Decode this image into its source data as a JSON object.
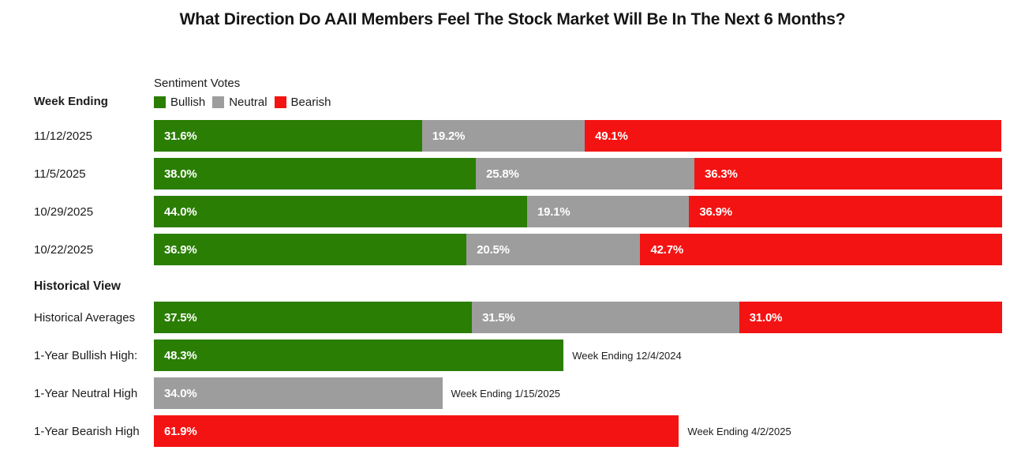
{
  "title": "What Direction Do AAII Members Feel The Stock Market Will Be In The Next 6 Months?",
  "left_header": "Week Ending",
  "section_header": "Historical View",
  "legend": {
    "title": "Sentiment Votes",
    "items": [
      {
        "label": "Bullish",
        "series": "bullish"
      },
      {
        "label": "Neutral",
        "series": "neutral"
      },
      {
        "label": "Bearish",
        "series": "bearish"
      }
    ]
  },
  "colors": {
    "bullish": "#2a7e04",
    "neutral": "#9d9d9d",
    "bearish": "#f41313"
  },
  "chart_data": {
    "type": "bar",
    "orientation": "horizontal-stacked",
    "axis_max": 100,
    "value_suffix": "%",
    "weekly_rows": [
      {
        "label": "11/12/2025",
        "bullish": 31.6,
        "neutral": 19.2,
        "bearish": 49.1
      },
      {
        "label": "11/5/2025",
        "bullish": 38.0,
        "neutral": 25.8,
        "bearish": 36.3
      },
      {
        "label": "10/29/2025",
        "bullish": 44.0,
        "neutral": 19.1,
        "bearish": 36.9
      },
      {
        "label": "10/22/2025",
        "bullish": 36.9,
        "neutral": 20.5,
        "bearish": 42.7
      }
    ],
    "historical_rows": [
      {
        "label": "Historical Averages",
        "bullish": 37.5,
        "neutral": 31.5,
        "bearish": 31.0
      }
    ],
    "single_rows": [
      {
        "label": "1-Year Bullish High:",
        "series": "bullish",
        "value": 48.3,
        "annotation": "Week Ending 12/4/2024"
      },
      {
        "label": "1-Year Neutral High",
        "series": "neutral",
        "value": 34.0,
        "annotation": "Week Ending 1/15/2025"
      },
      {
        "label": "1-Year Bearish High",
        "series": "bearish",
        "value": 61.9,
        "annotation": "Week Ending 4/2/2025"
      }
    ]
  }
}
